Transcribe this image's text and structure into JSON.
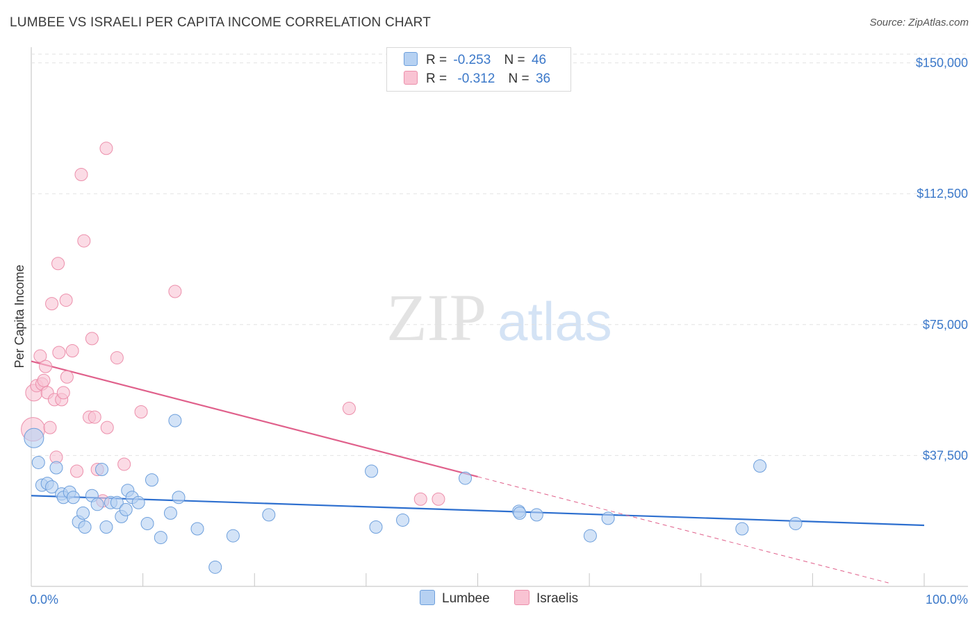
{
  "header": {
    "title": "LUMBEE VS ISRAELI PER CAPITA INCOME CORRELATION CHART",
    "source": "Source: ZipAtlas.com"
  },
  "watermark": {
    "zip": "ZIP",
    "atlas": "atlas"
  },
  "legend": {
    "r_label": "R =",
    "n_label": "N =",
    "lumbee": {
      "r": "-0.253",
      "n": "46",
      "name": "Lumbee"
    },
    "israelis": {
      "r": "-0.312",
      "n": "36",
      "name": "Israelis"
    }
  },
  "colors": {
    "lumbee_fill": "#b6d1f2",
    "lumbee_stroke": "#6d9fdc",
    "lumbee_line": "#2d6fcf",
    "israelis_fill": "#f9c3d3",
    "israelis_stroke": "#ec8fab",
    "israelis_line": "#e0608b",
    "axis_text": "#3b78c9"
  },
  "chart_data": {
    "type": "scatter",
    "title": "LUMBEE VS ISRAELI PER CAPITA INCOME CORRELATION CHART",
    "xlabel": "",
    "ylabel": "Per Capita Income",
    "xlim": [
      0,
      100
    ],
    "ylim": [
      0,
      152500
    ],
    "x_tick_labels": [
      "0.0%",
      "100.0%"
    ],
    "y_ticks": [
      37500,
      75000,
      112500,
      150000
    ],
    "y_tick_labels": [
      "$37,500",
      "$75,000",
      "$112,500",
      "$150,000"
    ],
    "series": [
      {
        "name": "Lumbee",
        "r": -0.253,
        "n": 46,
        "trend": {
          "x0": 0,
          "y0": 26000,
          "x1": 100,
          "y1": 17500,
          "dashed_from": null
        },
        "points": [
          [
            0.3,
            42500,
            14
          ],
          [
            0.8,
            35500,
            9
          ],
          [
            1.2,
            29000,
            9
          ],
          [
            1.8,
            29500,
            9
          ],
          [
            2.3,
            28500,
            9
          ],
          [
            2.8,
            34000,
            9
          ],
          [
            3.4,
            26500,
            9
          ],
          [
            3.6,
            25500,
            9
          ],
          [
            4.3,
            27000,
            9
          ],
          [
            4.7,
            25500,
            9
          ],
          [
            5.3,
            18500,
            9
          ],
          [
            5.8,
            21000,
            9
          ],
          [
            6.0,
            17000,
            9
          ],
          [
            6.8,
            26000,
            9
          ],
          [
            7.4,
            23500,
            9
          ],
          [
            7.9,
            33500,
            9
          ],
          [
            8.4,
            17000,
            9
          ],
          [
            8.9,
            24000,
            9
          ],
          [
            9.6,
            24000,
            9
          ],
          [
            10.1,
            20000,
            9
          ],
          [
            10.6,
            22000,
            9
          ],
          [
            10.8,
            27500,
            9
          ],
          [
            11.3,
            25500,
            9
          ],
          [
            12.0,
            24000,
            9
          ],
          [
            13.0,
            18000,
            9
          ],
          [
            13.5,
            30500,
            9
          ],
          [
            14.5,
            14000,
            9
          ],
          [
            15.6,
            21000,
            9
          ],
          [
            16.1,
            47500,
            9
          ],
          [
            16.5,
            25500,
            9
          ],
          [
            18.6,
            16500,
            9
          ],
          [
            20.6,
            5500,
            9
          ],
          [
            22.6,
            14500,
            9
          ],
          [
            26.6,
            20500,
            9
          ],
          [
            38.1,
            33000,
            9
          ],
          [
            38.6,
            17000,
            9
          ],
          [
            41.6,
            19000,
            9
          ],
          [
            48.6,
            31000,
            9
          ],
          [
            54.6,
            21500,
            9
          ],
          [
            54.7,
            21000,
            9
          ],
          [
            56.6,
            20500,
            9
          ],
          [
            62.6,
            14500,
            9
          ],
          [
            64.6,
            19500,
            9
          ],
          [
            79.6,
            16500,
            9
          ],
          [
            81.6,
            34500,
            9
          ],
          [
            85.6,
            18000,
            9
          ]
        ]
      },
      {
        "name": "Israelis",
        "r": -0.312,
        "n": 36,
        "trend": {
          "x0": 0,
          "y0": 64500,
          "x1": 96,
          "y1": 1000,
          "dashed_from": 50.0
        },
        "points": [
          [
            0.2,
            45000,
            17
          ],
          [
            0.3,
            55500,
            12
          ],
          [
            0.6,
            57500,
            9
          ],
          [
            1.0,
            66000,
            9
          ],
          [
            1.2,
            58000,
            9
          ],
          [
            1.4,
            59000,
            9
          ],
          [
            1.6,
            63000,
            9
          ],
          [
            1.8,
            55500,
            9
          ],
          [
            2.1,
            45500,
            9
          ],
          [
            2.3,
            81000,
            9
          ],
          [
            2.6,
            53500,
            9
          ],
          [
            2.8,
            37000,
            9
          ],
          [
            3.0,
            92500,
            9
          ],
          [
            3.1,
            67000,
            9
          ],
          [
            3.4,
            53500,
            9
          ],
          [
            3.6,
            55500,
            9
          ],
          [
            3.9,
            82000,
            9
          ],
          [
            4.0,
            60000,
            9
          ],
          [
            4.6,
            67500,
            9
          ],
          [
            5.1,
            33000,
            9
          ],
          [
            5.6,
            118000,
            9
          ],
          [
            5.9,
            99000,
            9
          ],
          [
            6.5,
            48500,
            9
          ],
          [
            6.8,
            71000,
            9
          ],
          [
            7.1,
            48500,
            9
          ],
          [
            7.4,
            33500,
            9
          ],
          [
            8.0,
            24500,
            9
          ],
          [
            8.4,
            125500,
            9
          ],
          [
            8.5,
            45500,
            9
          ],
          [
            9.6,
            65500,
            9
          ],
          [
            10.4,
            35000,
            9
          ],
          [
            12.3,
            50000,
            9
          ],
          [
            16.1,
            84500,
            9
          ],
          [
            35.6,
            51000,
            9
          ],
          [
            43.6,
            25000,
            9
          ],
          [
            45.6,
            25000,
            9
          ]
        ]
      }
    ]
  }
}
